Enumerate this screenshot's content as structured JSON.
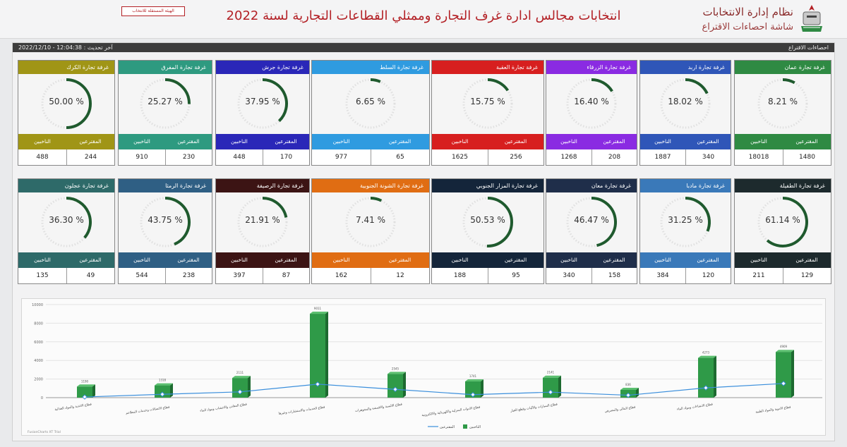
{
  "header": {
    "system_title": "نظام إدارة الانتخابات",
    "screen_subtitle": "شاشة احصاءات الاقتراع",
    "main_title": "انتخابات مجالس ادارة غرف التجارة وممثلي القطاعات التجارية لسنة 2022",
    "independent_commission_button": "الهيئة المستقلة للانتخاب"
  },
  "panel": {
    "title": "احصاءات الاقتراع",
    "last_update": "آخر تحديث : 12:04:38 - 2022/12/10"
  },
  "labels": {
    "voters": "المقترعين",
    "eligible": "الناخبين"
  },
  "chambers": [
    {
      "name": "غرفة تجارة عمان",
      "percent": "8.21",
      "voters": "1480",
      "eligible": "18018",
      "color": "#2f8a43"
    },
    {
      "name": "غرفة تجارة اربد",
      "percent": "18.02",
      "voters": "340",
      "eligible": "1887",
      "color": "#2f56b8"
    },
    {
      "name": "غرفة تجارة الزرقاء",
      "percent": "16.40",
      "voters": "208",
      "eligible": "1268",
      "color": "#8a2be2"
    },
    {
      "name": "غرفة تجارة العقبة",
      "percent": "15.75",
      "voters": "256",
      "eligible": "1625",
      "color": "#d71f1f"
    },
    {
      "name": "غرفة تجارة السلط",
      "percent": "6.65",
      "voters": "65",
      "eligible": "977",
      "color": "#2f9be0"
    },
    {
      "name": "غرفة تجارة جرش",
      "percent": "37.95",
      "voters": "170",
      "eligible": "448",
      "color": "#2a27b8"
    },
    {
      "name": "غرفة تجارة المفرق",
      "percent": "25.27",
      "voters": "230",
      "eligible": "910",
      "color": "#2e9a80"
    },
    {
      "name": "غرفة تجارة الكرك",
      "percent": "50.00",
      "voters": "244",
      "eligible": "488",
      "color": "#a09516"
    },
    {
      "name": "غرفة تجارة الطفيلة",
      "percent": "61.14",
      "voters": "129",
      "eligible": "211",
      "color": "#1d2a2d"
    },
    {
      "name": "غرفة تجارة مادبا",
      "percent": "31.25",
      "voters": "120",
      "eligible": "384",
      "color": "#3a79b9"
    },
    {
      "name": "غرفة تجارة معان",
      "percent": "46.47",
      "voters": "158",
      "eligible": "340",
      "color": "#1f2e4a"
    },
    {
      "name": "غرفة تجارة المزار الجنوبي",
      "percent": "50.53",
      "voters": "95",
      "eligible": "188",
      "color": "#14253a"
    },
    {
      "name": "غرفة تجارة الشونة الجنوبية",
      "percent": "7.41",
      "voters": "12",
      "eligible": "162",
      "color": "#e06d13"
    },
    {
      "name": "غرفة تجارة الرصيفة",
      "percent": "21.91",
      "voters": "87",
      "eligible": "397",
      "color": "#3c1414"
    },
    {
      "name": "غرفة تجارة الرمثا",
      "percent": "43.75",
      "voters": "238",
      "eligible": "544",
      "color": "#2f5f84"
    },
    {
      "name": "غرفة تجارة عجلون",
      "percent": "36.30",
      "voters": "49",
      "eligible": "135",
      "color": "#2e6a69"
    }
  ],
  "chart_data": {
    "type": "bar",
    "bar_color": "#2f9a48",
    "line_color": "#3b8fdc",
    "categories": [
      "قطاع الاغذية والمواد الغذائية",
      "قطاع الاتصالات وخدمات المطاعم",
      "قطاع المعادن والاخشاب ومواد البناء",
      "قطاع الخدمات والاستشارات وغيرها",
      "قطاع الالبسة والاقمشة والمجوهرات",
      "قطاع الادوات المنزلية والكهربائية والالكترونية",
      "قطاع السيارات والآليات وقطع الغيار",
      "قطاع المالي والمصرفي",
      "قطاع الانشاءات ومواد البناء",
      "قطاع الادوية والمواد الطبية"
    ],
    "series": [
      {
        "name": "الناخبين",
        "values": [
          1190,
          1318,
          2111,
          9011,
          2545,
          1741,
          2141,
          836,
          4273,
          4909
        ]
      },
      {
        "name": "المقترعين",
        "values": [
          70,
          360,
          620,
          1450,
          890,
          320,
          590,
          260,
          1050,
          1520
        ]
      }
    ],
    "yticks": [
      "10000",
      "8000",
      "6000",
      "4000",
      "2000",
      "0"
    ],
    "ylim": [
      0,
      10000
    ],
    "legend": [
      "المقترعين",
      "الناخبين"
    ],
    "credit": "FusionCharts XT Trial"
  }
}
